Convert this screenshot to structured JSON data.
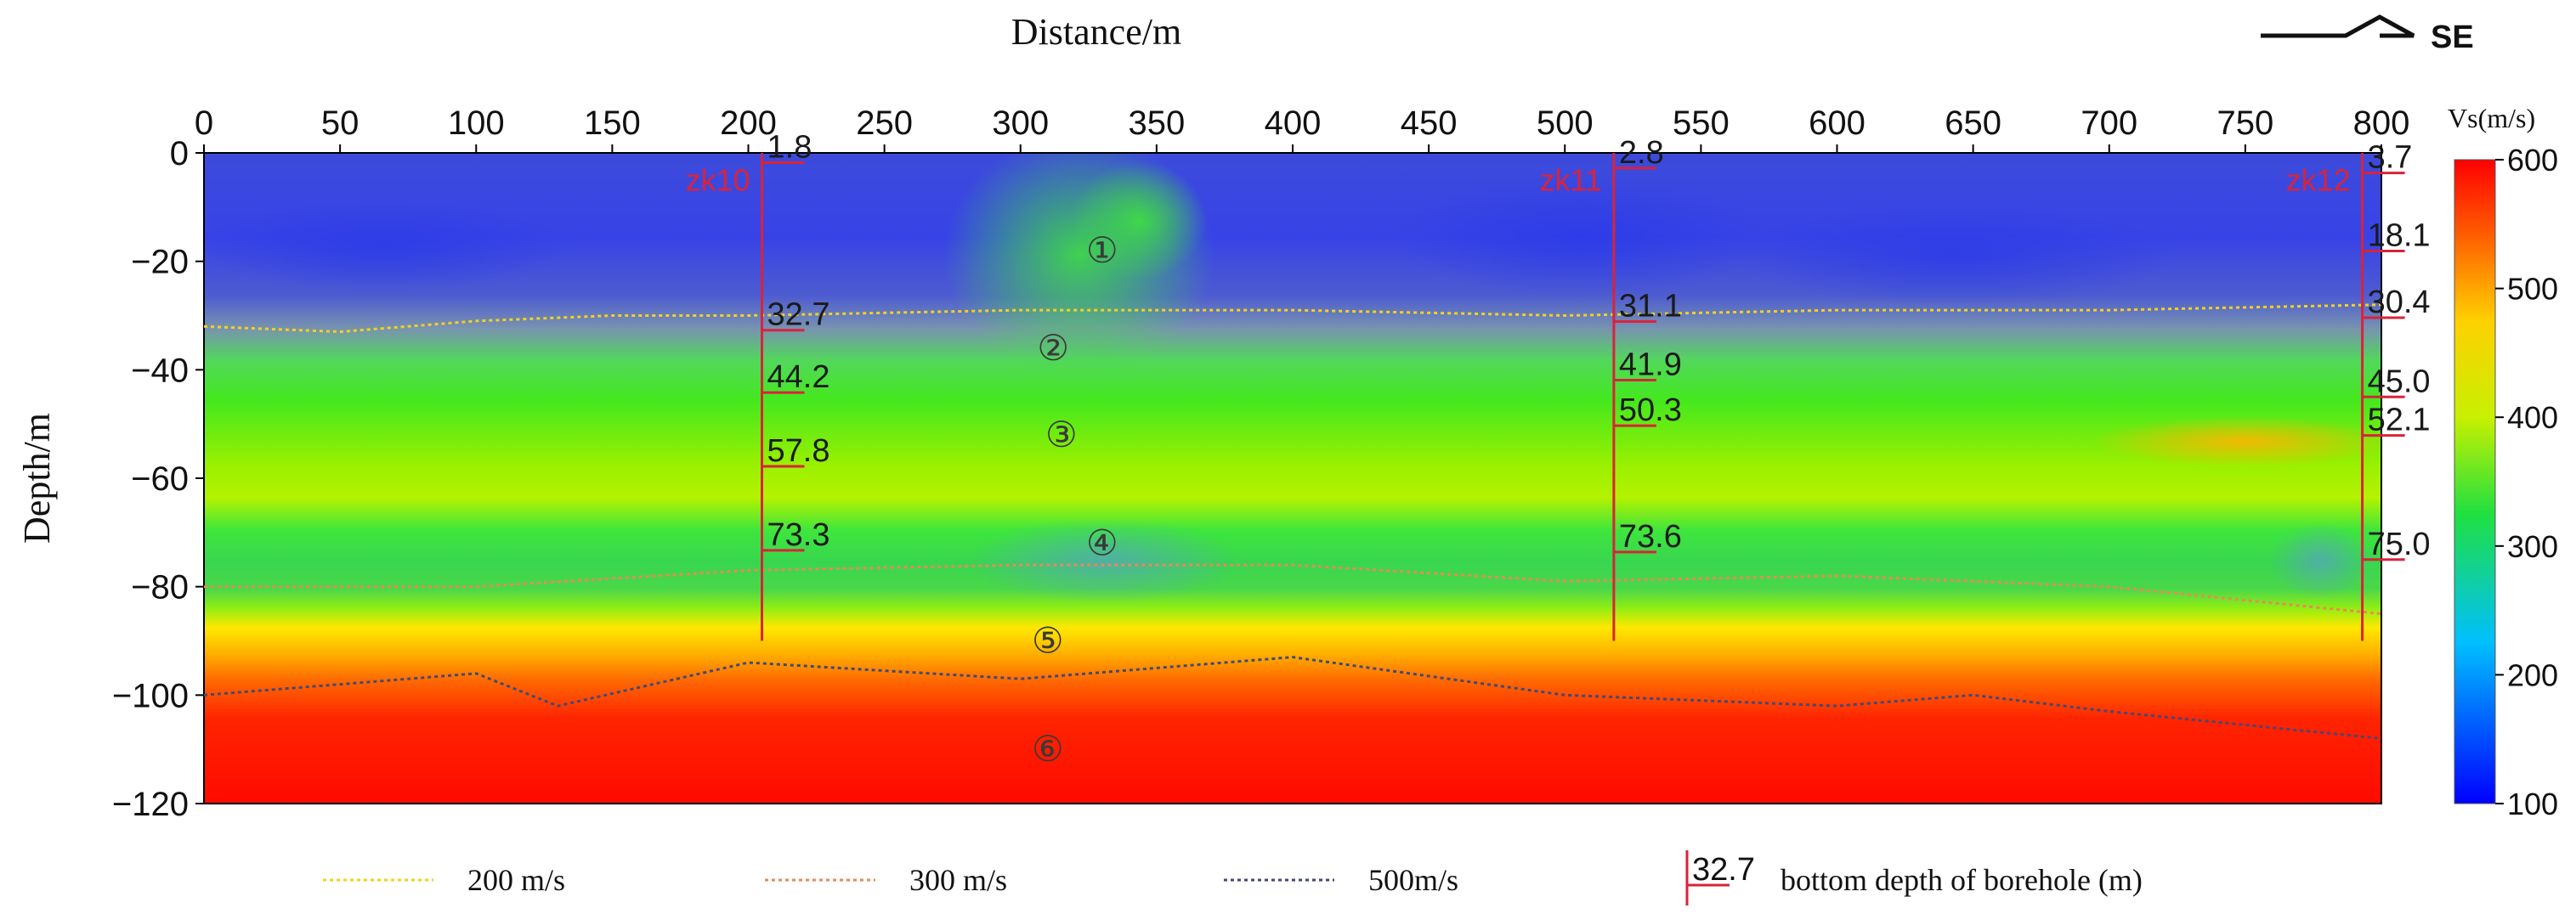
{
  "chart_data": {
    "type": "heatmap",
    "title": "",
    "xlabel": "Distance/m",
    "ylabel": "Depth/m",
    "xlim": [
      0,
      800
    ],
    "ylim": [
      -120,
      0
    ],
    "x_ticks": [
      0,
      50,
      100,
      150,
      200,
      250,
      300,
      350,
      400,
      450,
      500,
      550,
      600,
      650,
      700,
      750,
      800
    ],
    "y_ticks": [
      0,
      -20,
      -40,
      -60,
      -80,
      -100,
      -120
    ],
    "x_tick_labels": [
      "0",
      "50",
      "100",
      "150",
      "200",
      "250",
      "300",
      "350",
      "400",
      "450",
      "500",
      "550",
      "600",
      "650",
      "700",
      "750",
      "800"
    ],
    "y_tick_labels": [
      "0",
      "−20",
      "−40",
      "−60",
      "−80",
      "−100",
      "−120"
    ],
    "colorbar": {
      "title": "Vs(m/s)",
      "min": 100,
      "max": 600,
      "ticks": [
        100,
        200,
        300,
        400,
        500,
        600
      ],
      "tick_labels": [
        "100",
        "200",
        "300",
        "400",
        "500",
        "600"
      ]
    },
    "direction_label": "SE",
    "contours": [
      {
        "name": "200 m/s",
        "color": "#f2d21c",
        "x": [
          0,
          50,
          100,
          150,
          200,
          300,
          400,
          500,
          600,
          700,
          800
        ],
        "depth": [
          -32,
          -33,
          -31,
          -30,
          -30,
          -29,
          -29,
          -30,
          -29,
          -29,
          -28
        ]
      },
      {
        "name": "300 m/s",
        "color": "#e88a55",
        "x": [
          0,
          100,
          200,
          300,
          400,
          500,
          600,
          700,
          800
        ],
        "depth": [
          -80,
          -80,
          -77,
          -76,
          -76,
          -79,
          -78,
          -80,
          -85
        ]
      },
      {
        "name": "500m/s",
        "color": "#404a7a",
        "x": [
          0,
          50,
          100,
          130,
          200,
          300,
          400,
          500,
          600,
          650,
          700,
          800
        ],
        "depth": [
          -100,
          -98,
          -96,
          -102,
          -94,
          -97,
          -93,
          -100,
          -102,
          -100,
          -103,
          -108
        ]
      }
    ],
    "boreholes": [
      {
        "name": "zk10",
        "x": 205,
        "bottom_depth": -90,
        "layers": [
          {
            "label": "1.8",
            "depth": -1.8
          },
          {
            "label": "32.7",
            "depth": -32.7
          },
          {
            "label": "44.2",
            "depth": -44.2
          },
          {
            "label": "57.8",
            "depth": -57.8
          },
          {
            "label": "73.3",
            "depth": -73.3
          }
        ]
      },
      {
        "name": "zk11",
        "x": 518,
        "bottom_depth": -90,
        "layers": [
          {
            "label": "2.8",
            "depth": -2.8
          },
          {
            "label": "31.1",
            "depth": -31.1
          },
          {
            "label": "41.9",
            "depth": -41.9
          },
          {
            "label": "50.3",
            "depth": -50.3
          },
          {
            "label": "73.6",
            "depth": -73.6
          }
        ]
      },
      {
        "name": "zk12",
        "x": 793,
        "bottom_depth": -90,
        "layers": [
          {
            "label": "3.7",
            "depth": -3.7
          },
          {
            "label": "18.1",
            "depth": -18.1
          },
          {
            "label": "30.4",
            "depth": -30.4
          },
          {
            "label": "45.0",
            "depth": -45.0
          },
          {
            "label": "52.1",
            "depth": -52.1
          },
          {
            "label": "75.0",
            "depth": -75.0
          }
        ]
      }
    ],
    "layer_markers": [
      {
        "label": "①",
        "x": 330,
        "depth": -18
      },
      {
        "label": "②",
        "x": 312,
        "depth": -36
      },
      {
        "label": "③",
        "x": 315,
        "depth": -52
      },
      {
        "label": "④",
        "x": 330,
        "depth": -72
      },
      {
        "label": "⑤",
        "x": 310,
        "depth": -90
      },
      {
        "label": "⑥",
        "x": 310,
        "depth": -110
      }
    ],
    "legend": {
      "placement": "bottom",
      "items": [
        {
          "label": "200 m/s",
          "color": "#f2d21c",
          "kind": "line"
        },
        {
          "label": "300 m/s",
          "color": "#e88a55",
          "kind": "line"
        },
        {
          "label": "500m/s",
          "color": "#404a7a",
          "kind": "line"
        },
        {
          "label": "bottom depth of borehole (m)",
          "value": "32.7",
          "color": "#d9233a",
          "kind": "borehole"
        }
      ]
    }
  }
}
